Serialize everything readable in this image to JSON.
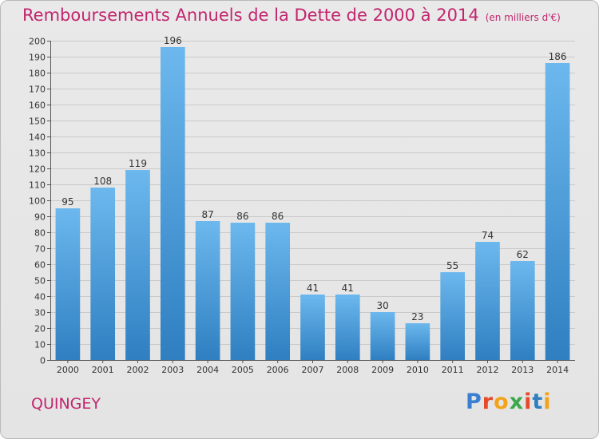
{
  "header": {
    "title": "Remboursements Annuels de la Dette de 2000 à 2014",
    "subtitle": "(en milliers d'€)"
  },
  "footer": {
    "town": "QUINGEY",
    "logo": {
      "letters": [
        "P",
        "r",
        "o",
        "x",
        "i",
        "t",
        "i"
      ]
    }
  },
  "colors": {
    "title": "#c2256e",
    "bar_light": "#6cb8ee",
    "bar_dark": "#2f7fc1",
    "logo": [
      "#3a7fd0",
      "#e64a28",
      "#f3a21b",
      "#3aa84b",
      "#e64a28",
      "#2f7fc1",
      "#f3a21b"
    ]
  },
  "chart_data": {
    "type": "bar",
    "title": "Remboursements Annuels de la Dette de 2000 à 2014",
    "subtitle": "(en milliers d'€)",
    "categories": [
      "2000",
      "2001",
      "2002",
      "2003",
      "2004",
      "2005",
      "2006",
      "2007",
      "2008",
      "2009",
      "2010",
      "2011",
      "2012",
      "2013",
      "2014"
    ],
    "values": [
      95,
      108,
      119,
      196,
      87,
      86,
      86,
      41,
      41,
      30,
      23,
      55,
      74,
      62,
      186
    ],
    "ylim": [
      0,
      200
    ],
    "yticks": [
      0,
      10,
      20,
      30,
      40,
      50,
      60,
      70,
      80,
      90,
      100,
      110,
      120,
      130,
      140,
      150,
      160,
      170,
      180,
      190,
      200
    ],
    "grid": true,
    "data_labels": true
  }
}
